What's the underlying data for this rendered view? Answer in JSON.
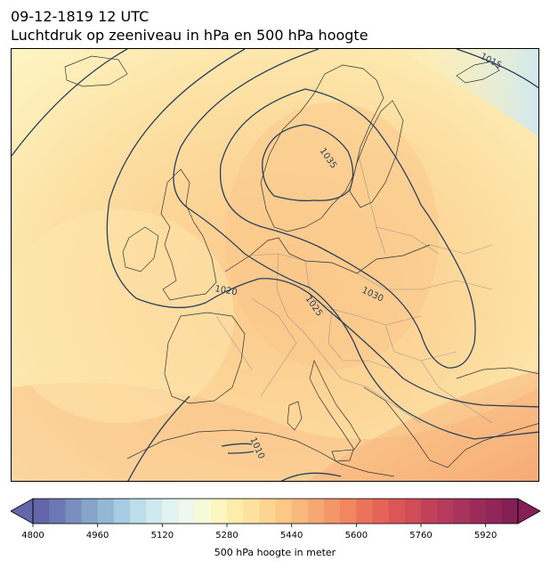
{
  "header": {
    "datetime": "09-12-1819 12 UTC",
    "title": "Luchtdruk op zeeniveau in hPa en 500 hPa hoogte"
  },
  "map": {
    "isobar_labels": [
      "1015",
      "1035",
      "1020",
      "1025",
      "1030",
      "1010"
    ],
    "colors": {
      "isobar": "#2b3f5c",
      "coast": "#333333",
      "border": "#8a8a8a"
    }
  },
  "colorbar": {
    "label": "500 hPa hoogte in meter",
    "ticks": [
      "4800",
      "4960",
      "5120",
      "5280",
      "5440",
      "5600",
      "5760",
      "5920"
    ],
    "range": [
      4800,
      6000
    ],
    "step": 40,
    "colors": [
      "#6466aa",
      "#6b78b3",
      "#7a8dbe",
      "#86a4c8",
      "#94b8d4",
      "#a7cbe0",
      "#bcdde9",
      "#d0e9ef",
      "#e2f2f1",
      "#eef7ee",
      "#f7fad6",
      "#fdf6c1",
      "#fdecab",
      "#fde19e",
      "#fcd591",
      "#fbc886",
      "#f9b97c",
      "#f7a872",
      "#f49768",
      "#f18661",
      "#ec735b",
      "#e66357",
      "#dc5656",
      "#cf4c58",
      "#c2415a",
      "#b53a5c",
      "#a8335c",
      "#9b2c5a",
      "#8f2657",
      "#842054"
    ]
  }
}
